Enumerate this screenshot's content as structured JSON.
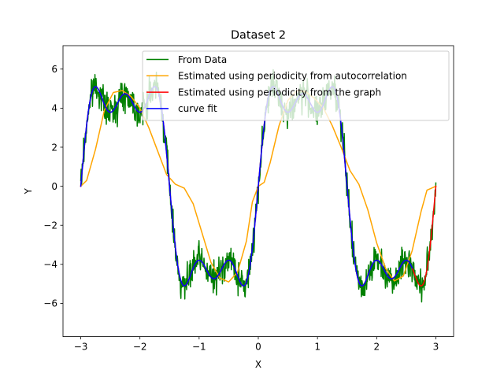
{
  "chart_data": {
    "type": "line",
    "title": "Dataset 2",
    "xlabel": "X",
    "ylabel": "Y",
    "xlim": [
      -3.3,
      3.3
    ],
    "ylim": [
      -7.7,
      7.2
    ],
    "x_ticks": [
      -3,
      -2,
      -1,
      0,
      1,
      2,
      3
    ],
    "x_tick_labels": [
      "−3",
      "−2",
      "−1",
      "0",
      "1",
      "2",
      "3"
    ],
    "y_ticks": [
      -6,
      -4,
      -2,
      0,
      2,
      4,
      6
    ],
    "y_tick_labels": [
      "−6",
      "−4",
      "−2",
      "0",
      "2",
      "4",
      "6"
    ],
    "grid": false,
    "legend_position": "top-right",
    "x_range": [
      -3,
      3
    ],
    "series": [
      {
        "name": "From Data",
        "color": "#008000",
        "noise_amplitude": 0.75,
        "model": {
          "a": 1.0,
          "b": 0.233,
          "c": 3.8,
          "period": 3.0
        }
      },
      {
        "name": "Estimated using periodicity from autocorrelation",
        "color": "#ffa500",
        "points": [
          [
            -3.0,
            0.0
          ],
          [
            -2.9,
            0.3
          ],
          [
            -2.75,
            1.9
          ],
          [
            -2.6,
            3.9
          ],
          [
            -2.45,
            4.8
          ],
          [
            -2.3,
            4.9
          ],
          [
            -2.15,
            4.6
          ],
          [
            -2.0,
            4.0
          ],
          [
            -1.85,
            3.0
          ],
          [
            -1.7,
            1.8
          ],
          [
            -1.55,
            0.6
          ],
          [
            -1.4,
            0.1
          ],
          [
            -1.25,
            -0.1
          ],
          [
            -1.1,
            -0.9
          ],
          [
            -0.95,
            -2.4
          ],
          [
            -0.8,
            -3.9
          ],
          [
            -0.65,
            -4.7
          ],
          [
            -0.5,
            -4.9
          ],
          [
            -0.35,
            -4.4
          ],
          [
            -0.2,
            -2.8
          ],
          [
            -0.1,
            -0.8
          ],
          [
            0.0,
            0.0
          ],
          [
            0.1,
            0.2
          ],
          [
            0.2,
            1.2
          ],
          [
            0.35,
            3.1
          ],
          [
            0.5,
            4.4
          ],
          [
            0.65,
            4.9
          ],
          [
            0.8,
            4.85
          ],
          [
            0.95,
            4.5
          ],
          [
            1.1,
            4.0
          ],
          [
            1.25,
            3.1
          ],
          [
            1.4,
            2.0
          ],
          [
            1.55,
            0.8
          ],
          [
            1.7,
            0.1
          ],
          [
            1.85,
            -1.2
          ],
          [
            2.0,
            -2.9
          ],
          [
            2.15,
            -4.2
          ],
          [
            2.3,
            -4.85
          ],
          [
            2.45,
            -4.6
          ],
          [
            2.6,
            -3.3
          ],
          [
            2.75,
            -1.3
          ],
          [
            2.85,
            -0.2
          ],
          [
            3.0,
            0.0
          ]
        ]
      },
      {
        "name": "Estimated using periodicity from the graph",
        "color": "#ff0000",
        "model": {
          "a": 1.0,
          "b": 0.233,
          "c": 3.8,
          "period": 3.0
        }
      },
      {
        "name": "curve fit",
        "color": "#0000ff",
        "x_range": [
          -3,
          2.6
        ],
        "model": {
          "a": 1.0,
          "b": 0.233,
          "c": 3.8,
          "period": 3.0
        }
      }
    ]
  }
}
